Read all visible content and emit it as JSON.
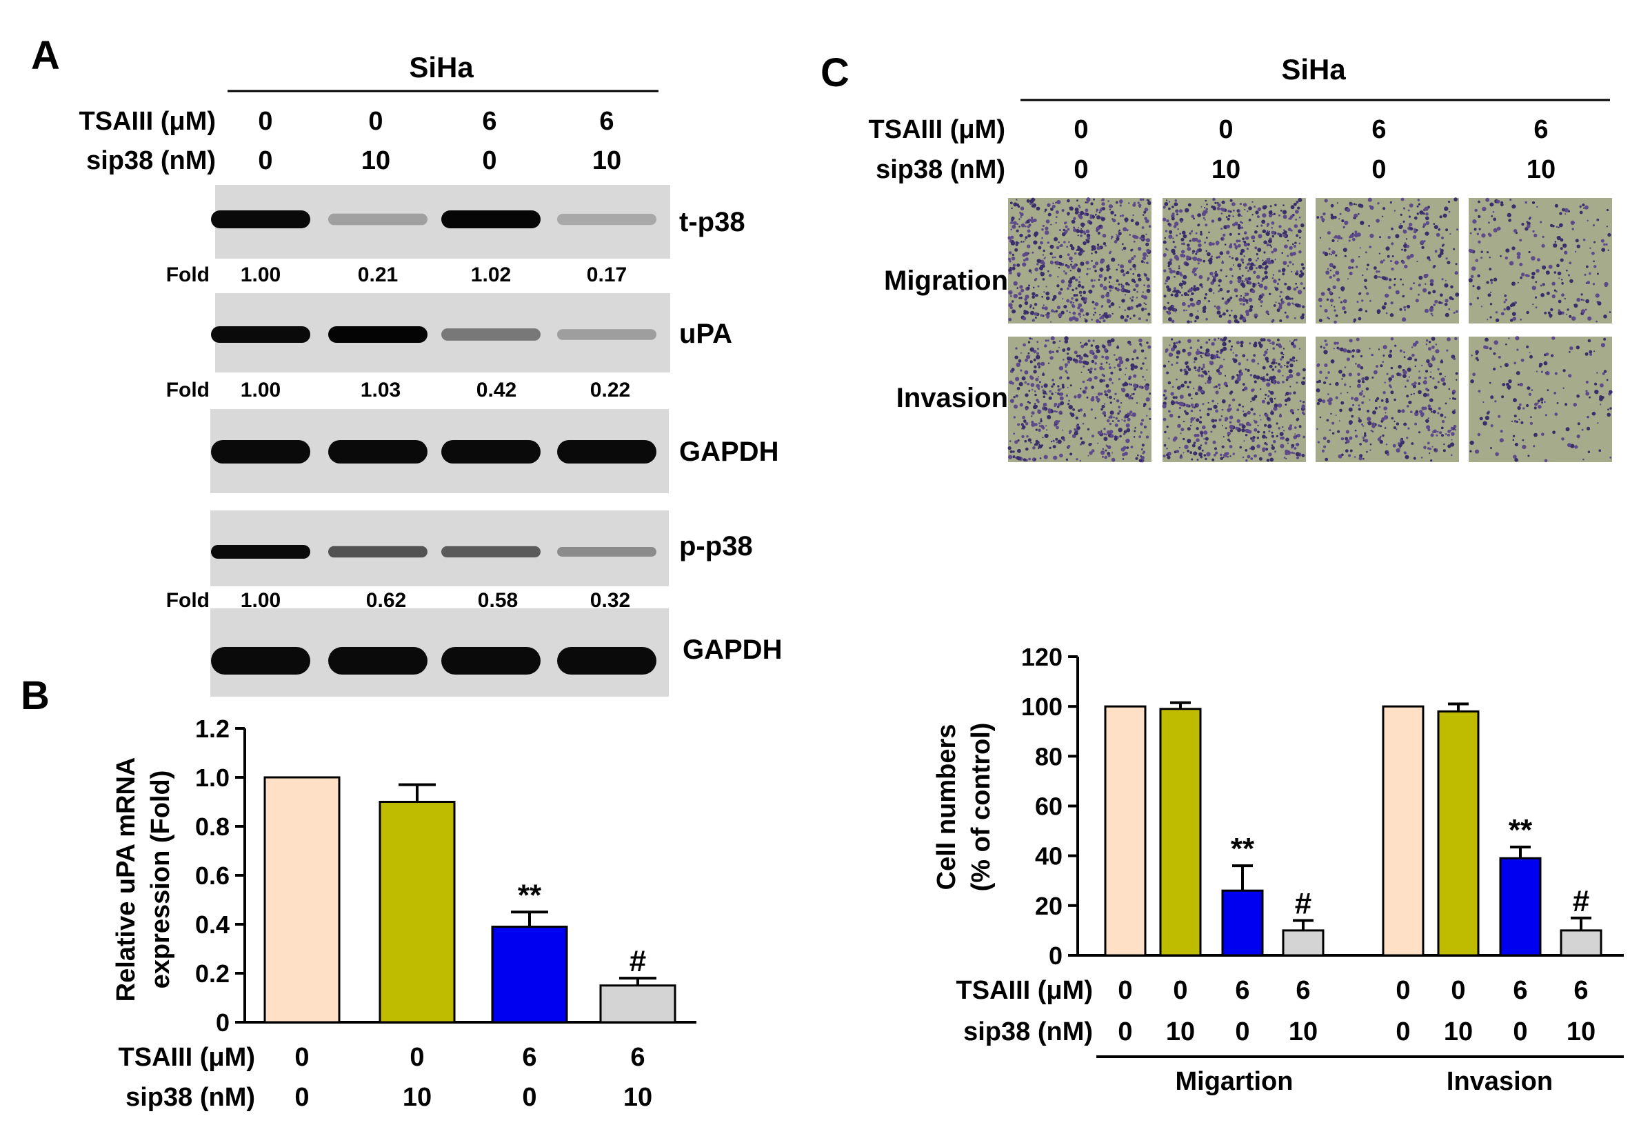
{
  "panel_a": {
    "letter": "A",
    "cell_line": "SiHa",
    "row_labels": [
      "TSAIII (μM)",
      "sip38 (nM)"
    ],
    "lanes": [
      {
        "tsaiii": "0",
        "sip38": "0"
      },
      {
        "tsaiii": "0",
        "sip38": "10"
      },
      {
        "tsaiii": "6",
        "sip38": "0"
      },
      {
        "tsaiii": "6",
        "sip38": "10"
      }
    ],
    "blots": [
      {
        "name": "t-p38",
        "fold_label": "Fold",
        "fold": [
          "1.00",
          "0.21",
          "1.02",
          "0.17"
        ],
        "intensity": [
          1.0,
          0.21,
          1.02,
          0.17
        ]
      },
      {
        "name": "uPA",
        "fold_label": "Fold",
        "fold": [
          "1.00",
          "1.03",
          "0.42",
          "0.22"
        ],
        "intensity": [
          1.0,
          1.03,
          0.42,
          0.22
        ]
      },
      {
        "name": "GAPDH",
        "fold_label": "",
        "fold": [],
        "intensity": [
          1.0,
          1.0,
          1.0,
          1.0
        ]
      },
      {
        "name": "p-p38",
        "fold_label": "Fold",
        "fold": [
          "1.00",
          "0.62",
          "0.58",
          "0.32"
        ],
        "intensity": [
          1.0,
          0.62,
          0.58,
          0.32
        ]
      },
      {
        "name": "GAPDH",
        "fold_label": "",
        "fold": [],
        "intensity": [
          1.0,
          1.0,
          1.0,
          1.0
        ]
      }
    ]
  },
  "panel_c_images": {
    "letter": "C",
    "cell_line": "SiHa",
    "row_labels": [
      "TSAIII (μM)",
      "sip38 (nM)"
    ],
    "lanes": [
      {
        "tsaiii": "0",
        "sip38": "0"
      },
      {
        "tsaiii": "0",
        "sip38": "10"
      },
      {
        "tsaiii": "6",
        "sip38": "0"
      },
      {
        "tsaiii": "6",
        "sip38": "10"
      }
    ],
    "image_rows": [
      "Migration",
      "Invasion"
    ],
    "density": [
      [
        0.95,
        0.9,
        0.45,
        0.35
      ],
      [
        0.8,
        0.85,
        0.55,
        0.25
      ]
    ]
  },
  "chart_data": [
    {
      "type": "bar",
      "panel": "B",
      "ylabel": "Relative uPA mRNA expression (Fold)",
      "ylim": [
        0,
        1.2
      ],
      "yticks": [
        "0",
        "0.2",
        "0.4",
        "0.6",
        "0.8",
        "1.0",
        "1.2"
      ],
      "row_labels": [
        "TSAIII (μM)",
        "sip38 (nM)"
      ],
      "categories": [
        {
          "tsaiii": "0",
          "sip38": "0"
        },
        {
          "tsaiii": "0",
          "sip38": "10"
        },
        {
          "tsaiii": "6",
          "sip38": "0"
        },
        {
          "tsaiii": "6",
          "sip38": "10"
        }
      ],
      "values": [
        1.0,
        0.9,
        0.39,
        0.15
      ],
      "errors": [
        0,
        0.07,
        0.06,
        0.03
      ],
      "annotations": [
        "",
        "",
        "**",
        "#"
      ],
      "colors": [
        "#fde0c5",
        "#bfbc00",
        "#0000f0",
        "#d4d4d4"
      ]
    },
    {
      "type": "bar",
      "panel": "C",
      "ylabel": "Cell numbers (% of control)",
      "ylim": [
        0,
        120
      ],
      "yticks": [
        "0",
        "20",
        "40",
        "60",
        "80",
        "100",
        "120"
      ],
      "row_labels": [
        "TSAIII (μM)",
        "sip38 (nM)"
      ],
      "categories": [
        {
          "tsaiii": "0",
          "sip38": "0"
        },
        {
          "tsaiii": "0",
          "sip38": "10"
        },
        {
          "tsaiii": "6",
          "sip38": "0"
        },
        {
          "tsaiii": "6",
          "sip38": "10"
        }
      ],
      "groups": [
        "Migartion",
        "Invasion"
      ],
      "series": [
        {
          "values": [
            100,
            99,
            26,
            10
          ],
          "errors": [
            0,
            2.5,
            10,
            4
          ],
          "annotations": [
            "",
            "",
            "**",
            "#"
          ]
        },
        {
          "values": [
            100,
            98,
            39,
            10
          ],
          "errors": [
            0,
            3,
            4.5,
            5
          ],
          "annotations": [
            "",
            "",
            "**",
            "#"
          ]
        }
      ],
      "colors": [
        "#fde0c5",
        "#bfbc00",
        "#0000f0",
        "#d4d4d4"
      ]
    }
  ]
}
